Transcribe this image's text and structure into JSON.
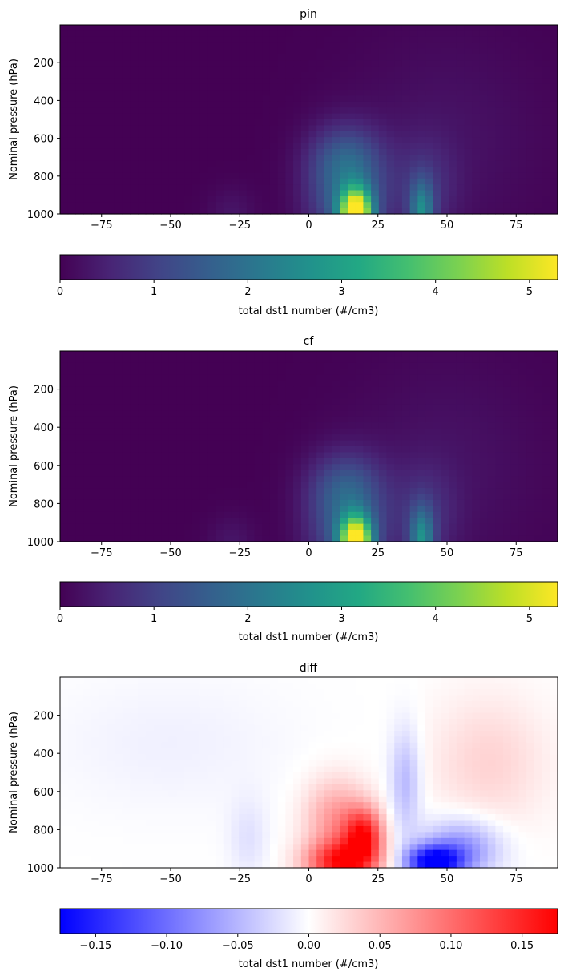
{
  "chart_data": [
    {
      "type": "heatmap",
      "title": "pin",
      "xlabel": "",
      "ylabel": "Nominal pressure (hPa)",
      "xlim": [
        -90,
        90
      ],
      "ylim": [
        1000,
        0
      ],
      "xticks": [
        -75,
        -50,
        -25,
        0,
        25,
        50,
        75
      ],
      "yticks": [
        200,
        400,
        600,
        800,
        1000
      ],
      "colormap": "viridis",
      "colorbar": {
        "label": "total dst1 number (#/cm3)",
        "range": [
          0,
          5.3
        ],
        "ticks": [
          0,
          1,
          2,
          3,
          4,
          5
        ],
        "tick_labels": [
          "0",
          "1",
          "2",
          "3",
          "4",
          "5"
        ],
        "orientation": "horizontal",
        "placement": "below"
      },
      "features": [
        {
          "lat": 17,
          "p_center": 1000,
          "lat_sigma": 4,
          "p_scale": 90,
          "value": 5.2
        },
        {
          "lat": 14,
          "p_center": 900,
          "lat_sigma": 10,
          "p_scale": 200,
          "value": 1.6
        },
        {
          "lat": 13,
          "p_center": 700,
          "lat_sigma": 9,
          "p_scale": 120,
          "value": 0.8
        },
        {
          "lat": 41,
          "p_center": 1000,
          "lat_sigma": 3,
          "p_scale": 120,
          "value": 2.0
        },
        {
          "lat": 42,
          "p_center": 860,
          "lat_sigma": 8,
          "p_scale": 180,
          "value": 0.6
        },
        {
          "lat": 50,
          "p_center": 600,
          "lat_sigma": 25,
          "p_scale": 400,
          "value": 0.25
        },
        {
          "lat": -28,
          "p_center": 1000,
          "lat_sigma": 6,
          "p_scale": 100,
          "value": 0.3
        }
      ]
    },
    {
      "type": "heatmap",
      "title": "cf",
      "xlabel": "",
      "ylabel": "Nominal pressure (hPa)",
      "xlim": [
        -90,
        90
      ],
      "ylim": [
        1000,
        0
      ],
      "xticks": [
        -75,
        -50,
        -25,
        0,
        25,
        50,
        75
      ],
      "yticks": [
        200,
        400,
        600,
        800,
        1000
      ],
      "colormap": "viridis",
      "colorbar": {
        "label": "total dst1 number (#/cm3)",
        "range": [
          0,
          5.3
        ],
        "ticks": [
          0,
          1,
          2,
          3,
          4,
          5
        ],
        "tick_labels": [
          "0",
          "1",
          "2",
          "3",
          "4",
          "5"
        ],
        "orientation": "horizontal",
        "placement": "below"
      },
      "features": [
        {
          "lat": 17,
          "p_center": 1000,
          "lat_sigma": 4,
          "p_scale": 90,
          "value": 5.1
        },
        {
          "lat": 14,
          "p_center": 900,
          "lat_sigma": 10,
          "p_scale": 200,
          "value": 1.5
        },
        {
          "lat": 13,
          "p_center": 700,
          "lat_sigma": 9,
          "p_scale": 120,
          "value": 0.7
        },
        {
          "lat": 41,
          "p_center": 1000,
          "lat_sigma": 3,
          "p_scale": 120,
          "value": 2.1
        },
        {
          "lat": 42,
          "p_center": 860,
          "lat_sigma": 8,
          "p_scale": 180,
          "value": 0.6
        },
        {
          "lat": 50,
          "p_center": 600,
          "lat_sigma": 25,
          "p_scale": 400,
          "value": 0.25
        },
        {
          "lat": -28,
          "p_center": 1000,
          "lat_sigma": 6,
          "p_scale": 100,
          "value": 0.3
        }
      ]
    },
    {
      "type": "heatmap",
      "title": "diff",
      "xlabel": "",
      "ylabel": "Nominal pressure (hPa)",
      "xlim": [
        -90,
        90
      ],
      "ylim": [
        1000,
        0
      ],
      "xticks": [
        -75,
        -50,
        -25,
        0,
        25,
        50,
        75
      ],
      "yticks": [
        200,
        400,
        600,
        800,
        1000
      ],
      "colormap": "bwr",
      "colorbar": {
        "label": "total dst1 number (#/cm3)",
        "range": [
          -0.175,
          0.175
        ],
        "ticks": [
          -0.15,
          -0.1,
          -0.05,
          0,
          0.05,
          0.1,
          0.15
        ],
        "tick_labels": [
          "−0.15",
          "−0.10",
          "−0.05",
          "0.00",
          "0.05",
          "0.10",
          "0.15"
        ],
        "orientation": "horizontal",
        "placement": "below"
      },
      "features": [
        {
          "lat": 12,
          "p_center": 975,
          "lat_sigma": 9,
          "p_scale": 80,
          "value": 0.15
        },
        {
          "lat": 20,
          "p_center": 830,
          "lat_sigma": 5,
          "p_scale": 100,
          "value": 0.14
        },
        {
          "lat": 10,
          "p_center": 750,
          "lat_sigma": 8,
          "p_scale": 150,
          "value": 0.07
        },
        {
          "lat": 45,
          "p_center": 970,
          "lat_sigma": 7,
          "p_scale": 60,
          "value": -0.17
        },
        {
          "lat": 55,
          "p_center": 900,
          "lat_sigma": 10,
          "p_scale": 110,
          "value": -0.08
        },
        {
          "lat": 35,
          "p_center": 550,
          "lat_sigma": 4,
          "p_scale": 200,
          "value": -0.05
        },
        {
          "lat": 65,
          "p_center": 450,
          "lat_sigma": 15,
          "p_scale": 250,
          "value": 0.03
        },
        {
          "lat": -22,
          "p_center": 850,
          "lat_sigma": 5,
          "p_scale": 150,
          "value": -0.02
        },
        {
          "lat": -50,
          "p_center": 350,
          "lat_sigma": 30,
          "p_scale": 250,
          "value": -0.01
        }
      ]
    }
  ]
}
